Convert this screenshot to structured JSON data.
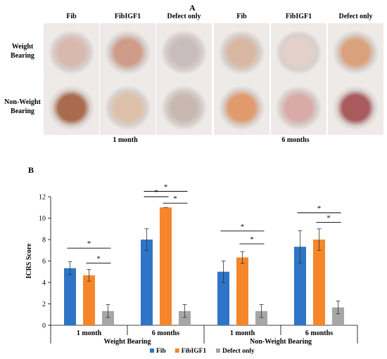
{
  "panel_a": {
    "label": "A",
    "columns": [
      "Fib",
      "FibIGF1",
      "Defect only",
      "Fib",
      "FibIGF1",
      "Defect only"
    ],
    "rows": [
      {
        "line1": "Weight",
        "line2": "Bearing"
      },
      {
        "line1": "Non-Weight",
        "line2": "Bearing"
      }
    ],
    "time_labels": [
      "1 month",
      "6 months"
    ],
    "photo_tints": [
      [
        "#d9b9ad",
        "#cf9c8a",
        "#c8bdbd",
        "#d8b8a4",
        "#e2d0c9",
        "#d9a27c"
      ],
      [
        "#a96a4e",
        "#dcc0aa",
        "#c9b8b2",
        "#e09a6c",
        "#d8aaa8",
        "#a85a5c"
      ]
    ],
    "photo_icon": "cartilage-defect-photo"
  },
  "panel_b": {
    "label": "B"
  },
  "chart_data": {
    "type": "bar",
    "ylabel": "ICRS Score",
    "ylim": [
      0,
      12
    ],
    "yticks": [
      0,
      2,
      4,
      6,
      8,
      10,
      12
    ],
    "groups": [
      {
        "name": "Weight  Bearing",
        "categories": [
          "1 month",
          "6 months"
        ]
      },
      {
        "name": "Non-Weight  Bearing",
        "categories": [
          "1 month",
          "6 months"
        ]
      }
    ],
    "categories": [
      "1 month",
      "6 months",
      "1 month",
      "6 months"
    ],
    "series": [
      {
        "name": "Fib",
        "color": "#2e75c8",
        "values": [
          5.33,
          8.0,
          5.0,
          7.33
        ],
        "errors": [
          0.6,
          1.0,
          1.0,
          1.5
        ]
      },
      {
        "name": "FibIGF1",
        "color": "#f5862a",
        "values": [
          4.67,
          11.0,
          6.33,
          8.0
        ],
        "errors": [
          0.55,
          0.0,
          0.55,
          1.0
        ]
      },
      {
        "name": "Defect only",
        "color": "#a6a6a6",
        "values": [
          1.33,
          1.33,
          1.33,
          1.67
        ],
        "errors": [
          0.6,
          0.6,
          0.6,
          0.6
        ]
      }
    ],
    "significance": [
      {
        "category": 0,
        "from": 0,
        "to": 2,
        "level": 7.2,
        "label": "*"
      },
      {
        "category": 0,
        "from": 1,
        "to": 2,
        "level": 5.8,
        "label": "*"
      },
      {
        "category": 1,
        "from": 0,
        "to": 2,
        "level": 12.5,
        "label": "*"
      },
      {
        "category": 1,
        "from": 0,
        "to": 1,
        "level": 12.0,
        "label": "*"
      },
      {
        "category": 1,
        "from": 1,
        "to": 2,
        "level": 11.4,
        "label": "*"
      },
      {
        "category": 2,
        "from": 0,
        "to": 2,
        "level": 8.8,
        "label": "*"
      },
      {
        "category": 2,
        "from": 1,
        "to": 2,
        "level": 7.6,
        "label": "*"
      },
      {
        "category": 3,
        "from": 0,
        "to": 2,
        "level": 10.5,
        "label": "*"
      },
      {
        "category": 3,
        "from": 1,
        "to": 2,
        "level": 9.6,
        "label": "*"
      }
    ],
    "legend": [
      "Fib",
      "FibIGF1",
      "Defect only"
    ],
    "legend_position": "bottom"
  }
}
